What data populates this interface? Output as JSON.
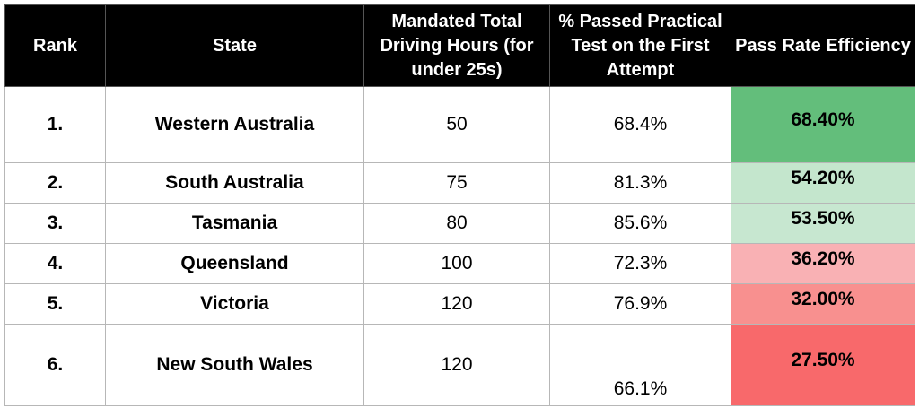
{
  "columns": {
    "rank": "Rank",
    "state": "State",
    "hours": "Mandated Total Driving Hours (for under 25s)",
    "passed": "% Passed Practical Test on the First Attempt",
    "efficiency": "Pass Rate Efficiency"
  },
  "rows": [
    {
      "rank": "1.",
      "state": "Western Australia",
      "hours": "50",
      "passed": "68.4%",
      "efficiency": "68.40%",
      "color": "#63be7b"
    },
    {
      "rank": "2.",
      "state": "South Australia",
      "hours": "75",
      "passed": "81.3%",
      "efficiency": "54.20%",
      "color": "#c4e6cd"
    },
    {
      "rank": "3.",
      "state": "Tasmania",
      "hours": "80",
      "passed": "85.6%",
      "efficiency": "53.50%",
      "color": "#c7e7d0"
    },
    {
      "rank": "4.",
      "state": "Queensland",
      "hours": "100",
      "passed": "72.3%",
      "efficiency": "36.20%",
      "color": "#f9b1b4"
    },
    {
      "rank": "5.",
      "state": "Victoria",
      "hours": "120",
      "passed": "76.9%",
      "efficiency": "32.00%",
      "color": "#f8908f"
    },
    {
      "rank": "6.",
      "state": "New South Wales",
      "hours": "120",
      "passed": "66.1%",
      "efficiency": "27.50%",
      "color": "#f8696b"
    }
  ]
}
